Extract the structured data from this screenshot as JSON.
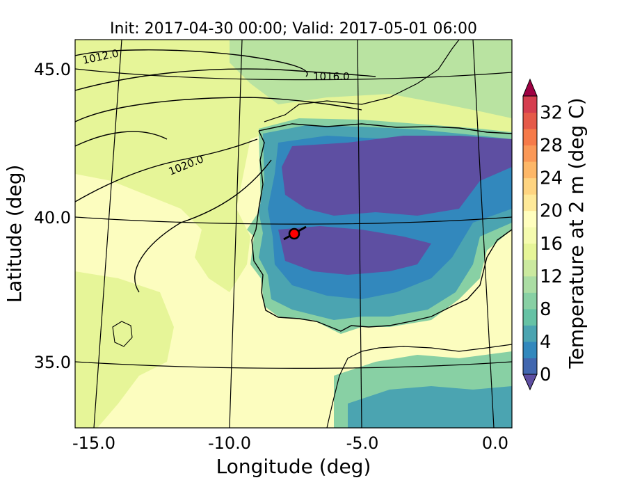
{
  "figure": {
    "title": "Init: 2017-04-30 00:00; Valid: 2017-05-01 06:00",
    "xlabel": "Longitude (deg)",
    "ylabel": "Latitude (deg)",
    "xticks": [
      "-15.0",
      "-10.0",
      "-5.0",
      "0.0"
    ],
    "yticks": [
      "45.0",
      "40.0",
      "35.0"
    ]
  },
  "colorbar": {
    "label": "Temperature at 2 m (deg C)",
    "ticks": [
      "0",
      "4",
      "8",
      "12",
      "16",
      "20",
      "24",
      "28",
      "32"
    ],
    "levels": [
      0,
      2,
      4,
      6,
      8,
      10,
      12,
      14,
      16,
      18,
      20,
      22,
      24,
      26,
      28,
      30,
      32,
      34
    ],
    "colors": [
      "#5e4fa2",
      "#4167af",
      "#3288bd",
      "#4ba4b1",
      "#66c2a5",
      "#88d0a4",
      "#abdda4",
      "#cbe99f",
      "#e6f598",
      "#f5fbaf",
      "#fffebe",
      "#fee999",
      "#fed481",
      "#fdb768",
      "#fa9857",
      "#f67a49",
      "#e55a49",
      "#d53e4f",
      "#b0204f",
      "#9e0142"
    ]
  },
  "contours": {
    "isobar_labels": [
      "1012.0",
      "1016.0",
      "1020.0"
    ]
  },
  "marker": {
    "color": "#ff0000"
  }
}
